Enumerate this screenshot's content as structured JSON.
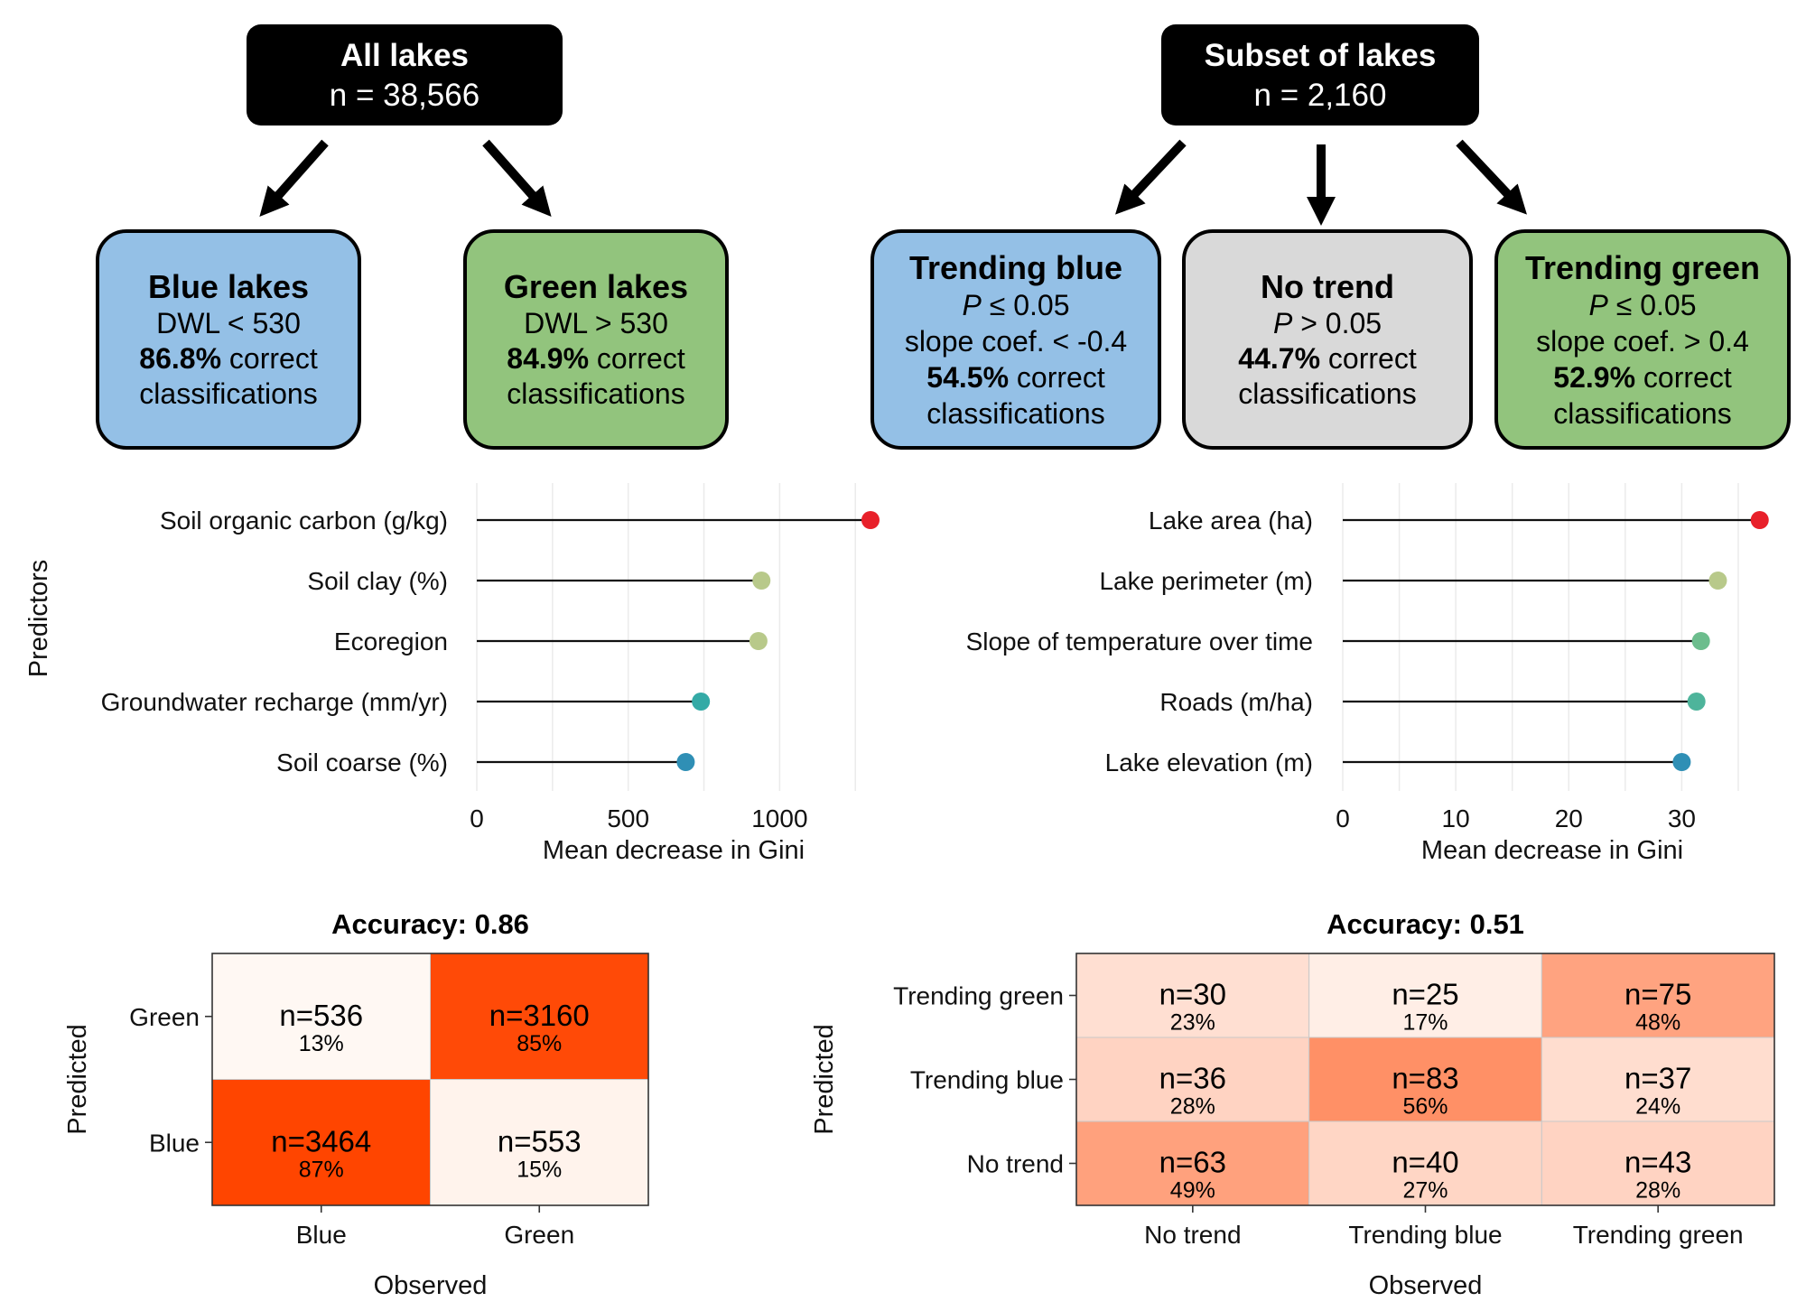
{
  "tree_left": {
    "header": {
      "title": "All lakes",
      "subtitle": "n = 38,566"
    },
    "boxes": [
      {
        "title": "Blue lakes",
        "rule": "DWL < 530",
        "pct": "86.8%",
        "pct_suffix": " correct",
        "last": "classifications",
        "fill": "#94c0e6"
      },
      {
        "title": "Green lakes",
        "rule": "DWL > 530",
        "pct": "84.9%",
        "pct_suffix": " correct",
        "last": "classifications",
        "fill": "#92c47d"
      }
    ]
  },
  "tree_right": {
    "header": {
      "title": "Subset of lakes",
      "subtitle": "n = 2,160"
    },
    "boxes": [
      {
        "title": "Trending blue",
        "p_sym": "P",
        "p_rule": " ≤ 0.05",
        "slope": "slope coef. < -0.4",
        "pct": "54.5%",
        "pct_suffix": " correct",
        "last": "classifications",
        "fill": "#94c0e6"
      },
      {
        "title": "No trend",
        "p_sym": "P",
        "p_rule": " > 0.05",
        "pct": "44.7%",
        "pct_suffix": " correct",
        "last": "classifications",
        "fill": "#d9d9d9"
      },
      {
        "title": "Trending green",
        "p_sym": "P",
        "p_rule": " ≤ 0.05",
        "slope": "slope coef. > 0.4",
        "pct": "52.9%",
        "pct_suffix": " correct",
        "last": "classifications",
        "fill": "#92c47d"
      }
    ]
  },
  "shared_labels": {
    "predictors_axis": "Predictors",
    "gini_axis": "Mean decrease in Gini",
    "predicted_axis": "Predicted",
    "observed_axis": "Observed"
  },
  "chart_data": [
    {
      "type": "lollipop",
      "ylabel": "Predictors",
      "xlabel": "Mean decrease in Gini",
      "xlim": [
        0,
        1300
      ],
      "xticks": [
        0,
        500,
        1000
      ],
      "grid": true,
      "categories": [
        "Soil organic carbon (g/kg)",
        "Soil clay (%)",
        "Ecoregion",
        "Groundwater recharge (mm/yr)",
        "Soil coarse (%)"
      ],
      "values": [
        1300,
        940,
        930,
        740,
        690
      ],
      "colors": [
        "#e8202a",
        "#b8c98a",
        "#b8c98a",
        "#34aaa6",
        "#2f8fb5"
      ]
    },
    {
      "type": "lollipop",
      "xlabel": "Mean decrease in Gini",
      "xlim": [
        0,
        37
      ],
      "xticks": [
        0,
        10,
        20,
        30
      ],
      "grid": true,
      "categories": [
        "Lake area (ha)",
        "Lake perimeter (m)",
        "Slope of temperature over time",
        "Roads (m/ha)",
        "Lake elevation (m)"
      ],
      "values": [
        36.9,
        33.2,
        31.7,
        31.3,
        30.0
      ],
      "colors": [
        "#e8202a",
        "#b8c98a",
        "#6cbd8d",
        "#4eb49b",
        "#2f8fb5"
      ]
    },
    {
      "type": "heatmap",
      "title": "Accuracy: 0.86",
      "xlabel": "Observed",
      "ylabel": "Predicted",
      "x_categories": [
        "Blue",
        "Green"
      ],
      "y_categories": [
        "Green",
        "Blue"
      ],
      "cells": [
        [
          {
            "n": "n=536",
            "pct": "13%",
            "frac": 0.13
          },
          {
            "n": "n=3160",
            "pct": "85%",
            "frac": 0.85
          }
        ],
        [
          {
            "n": "n=3464",
            "pct": "87%",
            "frac": 0.87
          },
          {
            "n": "n=553",
            "pct": "15%",
            "frac": 0.15
          }
        ]
      ]
    },
    {
      "type": "heatmap",
      "title": "Accuracy: 0.51",
      "xlabel": "Observed",
      "ylabel": "Predicted",
      "x_categories": [
        "No trend",
        "Trending blue",
        "Trending green"
      ],
      "y_categories": [
        "Trending green",
        "Trending blue",
        "No trend"
      ],
      "cells": [
        [
          {
            "n": "n=30",
            "pct": "23%",
            "frac": 0.23
          },
          {
            "n": "n=25",
            "pct": "17%",
            "frac": 0.17
          },
          {
            "n": "n=75",
            "pct": "48%",
            "frac": 0.48
          }
        ],
        [
          {
            "n": "n=36",
            "pct": "28%",
            "frac": 0.28
          },
          {
            "n": "n=83",
            "pct": "56%",
            "frac": 0.56
          },
          {
            "n": "n=37",
            "pct": "24%",
            "frac": 0.24
          }
        ],
        [
          {
            "n": "n=63",
            "pct": "49%",
            "frac": 0.49
          },
          {
            "n": "n=40",
            "pct": "27%",
            "frac": 0.27
          },
          {
            "n": "n=43",
            "pct": "28%",
            "frac": 0.28
          }
        ]
      ]
    }
  ]
}
